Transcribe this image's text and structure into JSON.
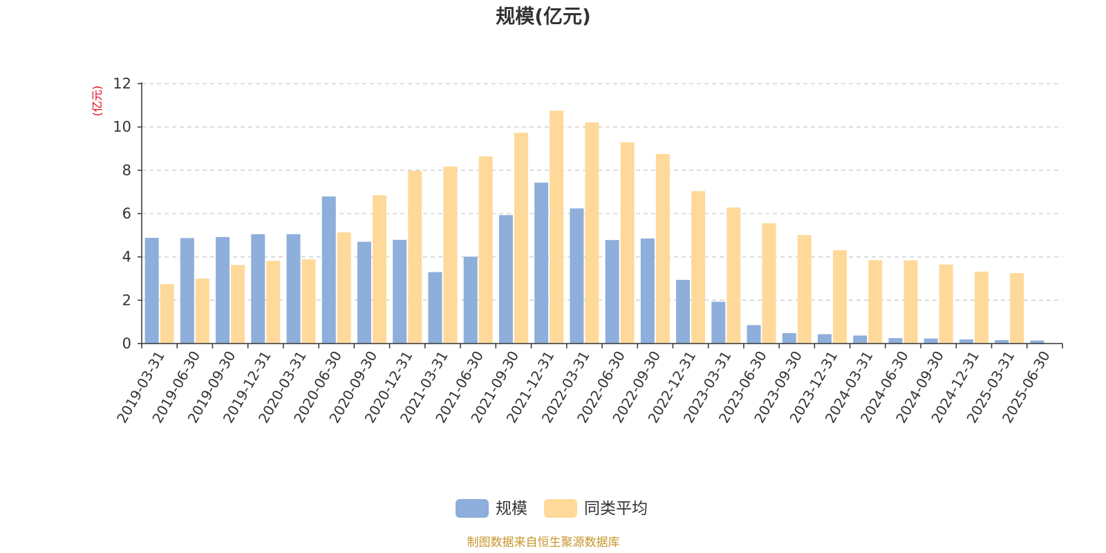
{
  "chart_data": {
    "type": "bar",
    "title": "规模(亿元)",
    "ylabel": "(亿元)",
    "ylim": [
      0,
      12
    ],
    "yticks": [
      0,
      2,
      4,
      6,
      8,
      10,
      12
    ],
    "grid": true,
    "legend_position": "bottom-center",
    "categories": [
      "2019-03-31",
      "2019-06-30",
      "2019-09-30",
      "2019-12-31",
      "2020-03-31",
      "2020-06-30",
      "2020-09-30",
      "2020-12-31",
      "2021-03-31",
      "2021-06-30",
      "2021-09-30",
      "2021-12-31",
      "2022-03-31",
      "2022-06-30",
      "2022-09-30",
      "2022-12-31",
      "2023-03-31",
      "2023-06-30",
      "2023-09-30",
      "2023-12-31",
      "2024-03-31",
      "2024-06-30",
      "2024-09-30",
      "2024-12-31",
      "2025-03-31",
      "2025-06-30"
    ],
    "series": [
      {
        "name": "规模",
        "color": "#8eaedb",
        "values": [
          4.88,
          4.87,
          4.92,
          5.05,
          5.05,
          6.79,
          4.7,
          4.79,
          3.3,
          4.01,
          5.93,
          7.43,
          6.24,
          4.78,
          4.85,
          2.94,
          1.93,
          0.85,
          0.48,
          0.43,
          0.37,
          0.25,
          0.23,
          0.19,
          0.16,
          0.14
        ]
      },
      {
        "name": "同类平均",
        "color": "#ffd99a",
        "values": [
          2.74,
          3.0,
          3.63,
          3.82,
          3.89,
          5.13,
          6.85,
          7.98,
          8.17,
          8.64,
          9.73,
          10.75,
          10.21,
          9.29,
          8.75,
          7.04,
          6.28,
          5.55,
          5.01,
          4.31,
          3.85,
          3.84,
          3.65,
          3.32,
          3.25,
          null
        ]
      }
    ]
  },
  "source_note": "制图数据来自恒生聚源数据库"
}
